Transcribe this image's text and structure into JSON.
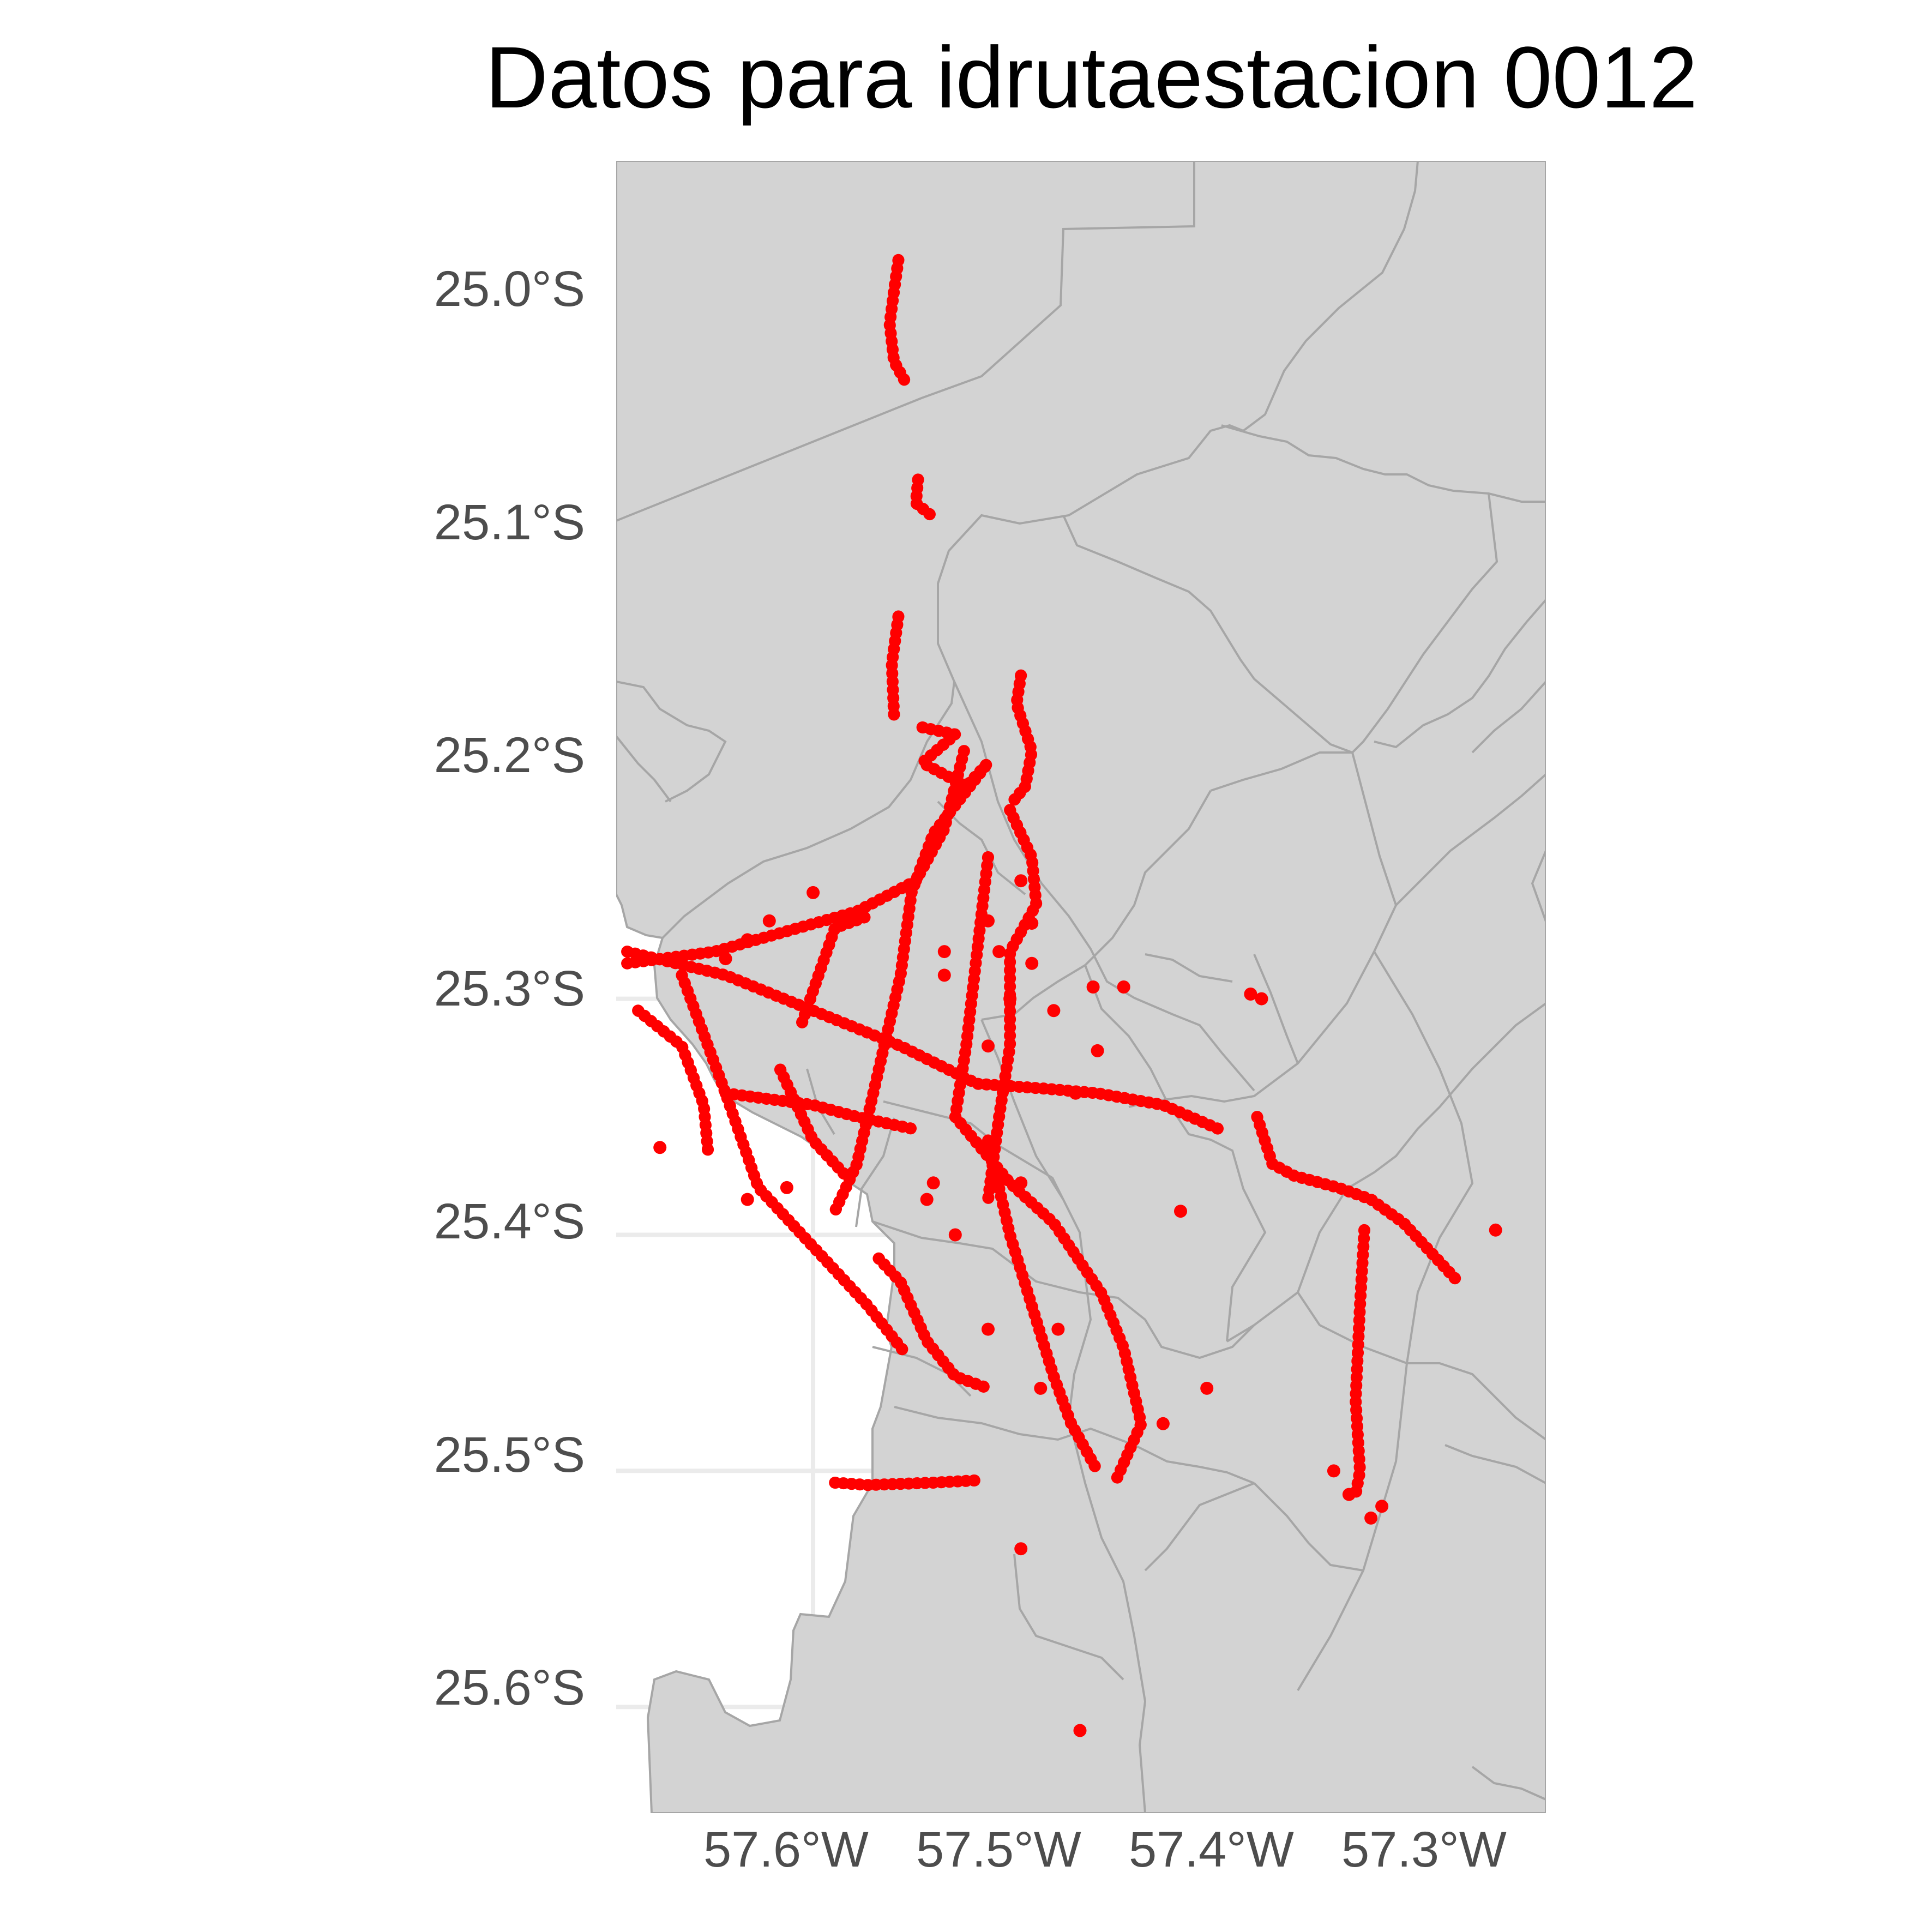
{
  "title": "Datos para idrutaestacion 0012",
  "colors": {
    "land": "#d3d3d3",
    "border": "#a6a6a6",
    "grid": "#ebebeb",
    "points": "#ff0000",
    "axis_text": "#4d4d4d"
  },
  "axes": {
    "y_ticks": [
      "25.0°S",
      "25.1°S",
      "25.2°S",
      "25.3°S",
      "25.4°S",
      "25.5°S",
      "25.6°S"
    ],
    "x_ticks": [
      "57.6°W",
      "57.5°W",
      "57.4°W",
      "57.3°W"
    ],
    "x_range": [
      -57.69,
      -57.265
    ],
    "y_range": [
      -25.645,
      -24.945
    ]
  },
  "chart_data": {
    "type": "scatter",
    "title": "Datos para idrutaestacion 0012",
    "xlabel": "",
    "ylabel": "",
    "xlim": [
      -57.69,
      -57.265
    ],
    "ylim": [
      -25.645,
      -24.945
    ],
    "grid": true,
    "series": [
      {
        "color": "#ff0000",
        "tracks": [
          [
            [
              -57.561,
              -24.987
            ],
            [
              -57.563,
              -25.0
            ],
            [
              -57.565,
              -25.014
            ],
            [
              -57.563,
              -25.03
            ],
            [
              -57.557,
              -25.04
            ]
          ],
          [
            [
              -57.552,
              -25.08
            ],
            [
              -57.553,
              -25.09
            ],
            [
              -57.545,
              -25.096
            ]
          ],
          [
            [
              -57.561,
              -25.138
            ],
            [
              -57.564,
              -25.158
            ],
            [
              -57.563,
              -25.18
            ]
          ],
          [
            [
              -57.505,
              -25.163
            ],
            [
              -57.507,
              -25.175
            ],
            [
              -57.5,
              -25.195
            ],
            [
              -57.503,
              -25.21
            ],
            [
              -57.51,
              -25.218
            ]
          ],
          [
            [
              -57.531,
              -25.195
            ],
            [
              -57.54,
              -25.228
            ],
            [
              -57.553,
              -25.25
            ],
            [
              -57.58,
              -25.263
            ],
            [
              -57.645,
              -25.28
            ],
            [
              -57.685,
              -25.285
            ]
          ],
          [
            [
              -57.55,
              -25.185
            ],
            [
              -57.535,
              -25.188
            ],
            [
              -57.55,
              -25.2
            ],
            [
              -57.53,
              -25.21
            ],
            [
              -57.52,
              -25.2
            ],
            [
              -57.545,
              -25.23
            ],
            [
              -57.555,
              -25.255
            ],
            [
              -57.56,
              -25.29
            ],
            [
              -57.57,
              -25.33
            ],
            [
              -57.58,
              -25.37
            ],
            [
              -57.59,
              -25.39
            ]
          ],
          [
            [
              -57.51,
              -25.22
            ],
            [
              -57.5,
              -25.24
            ],
            [
              -57.498,
              -25.26
            ],
            [
              -57.51,
              -25.28
            ],
            [
              -57.51,
              -25.32
            ],
            [
              -57.515,
              -25.35
            ],
            [
              -57.52,
              -25.385
            ]
          ],
          [
            [
              -57.52,
              -25.24
            ],
            [
              -57.525,
              -25.28
            ],
            [
              -57.53,
              -25.32
            ],
            [
              -57.535,
              -25.35
            ],
            [
              -57.51,
              -25.378
            ],
            [
              -57.49,
              -25.395
            ],
            [
              -57.468,
              -25.425
            ],
            [
              -57.458,
              -25.448
            ],
            [
              -57.45,
              -25.48
            ],
            [
              -57.462,
              -25.505
            ]
          ],
          [
            [
              -57.685,
              -25.28
            ],
            [
              -57.64,
              -25.29
            ],
            [
              -57.6,
              -25.305
            ],
            [
              -57.56,
              -25.32
            ],
            [
              -57.525,
              -25.336
            ],
            [
              -57.495,
              -25.338
            ],
            [
              -57.47,
              -25.34
            ],
            [
              -57.44,
              -25.345
            ],
            [
              -57.415,
              -25.355
            ]
          ],
          [
            [
              -57.66,
              -25.29
            ],
            [
              -57.64,
              -25.34
            ],
            [
              -57.625,
              -25.38
            ],
            [
              -57.61,
              -25.395
            ],
            [
              -57.595,
              -25.41
            ],
            [
              -57.575,
              -25.43
            ],
            [
              -57.558,
              -25.45
            ]
          ],
          [
            [
              -57.52,
              -25.36
            ],
            [
              -57.51,
              -25.4
            ],
            [
              -57.5,
              -25.43
            ],
            [
              -57.49,
              -25.46
            ],
            [
              -57.482,
              -25.48
            ],
            [
              -57.47,
              -25.5
            ]
          ],
          [
            [
              -57.64,
              -25.34
            ],
            [
              -57.6,
              -25.345
            ],
            [
              -57.58,
              -25.35
            ],
            [
              -57.555,
              -25.355
            ]
          ],
          [
            [
              -57.68,
              -25.305
            ],
            [
              -57.66,
              -25.32
            ],
            [
              -57.65,
              -25.345
            ],
            [
              -57.648,
              -25.365
            ]
          ],
          [
            [
              -57.605,
              -25.31
            ],
            [
              -57.59,
              -25.27
            ],
            [
              -57.575,
              -25.265
            ]
          ],
          [
            [
              -57.615,
              -25.33
            ],
            [
              -57.6,
              -25.36
            ],
            [
              -57.585,
              -25.375
            ]
          ],
          [
            [
              -57.397,
              -25.35
            ],
            [
              -57.39,
              -25.37
            ],
            [
              -57.38,
              -25.375
            ],
            [
              -57.36,
              -25.38
            ],
            [
              -57.345,
              -25.385
            ],
            [
              -57.33,
              -25.395
            ],
            [
              -57.315,
              -25.41
            ],
            [
              -57.305,
              -25.42
            ]
          ],
          [
            [
              -57.348,
              -25.398
            ],
            [
              -57.35,
              -25.43
            ],
            [
              -57.352,
              -25.47
            ],
            [
              -57.35,
              -25.5
            ],
            [
              -57.352,
              -25.51
            ]
          ],
          [
            [
              -57.57,
              -25.41
            ],
            [
              -57.56,
              -25.42
            ],
            [
              -57.548,
              -25.445
            ],
            [
              -57.535,
              -25.46
            ],
            [
              -57.52,
              -25.465
            ]
          ],
          [
            [
              -57.59,
              -25.505
            ],
            [
              -57.575,
              -25.506
            ],
            [
              -57.545,
              -25.505
            ],
            [
              -57.525,
              -25.504
            ]
          ]
        ],
        "points": [
          [
            -57.472,
            -25.295
          ],
          [
            -57.458,
            -25.295
          ],
          [
            -57.4,
            -25.298
          ],
          [
            -57.395,
            -25.3
          ],
          [
            -57.49,
            -25.305
          ],
          [
            -57.48,
            -25.34
          ],
          [
            -57.432,
            -25.39
          ],
          [
            -57.505,
            -25.378
          ],
          [
            -57.488,
            -25.44
          ],
          [
            -57.496,
            -25.465
          ],
          [
            -57.548,
            -25.385
          ],
          [
            -57.545,
            -25.378
          ],
          [
            -57.535,
            -25.4
          ],
          [
            -57.52,
            -25.44
          ],
          [
            -57.505,
            -25.533
          ],
          [
            -57.478,
            -25.61
          ],
          [
            -57.288,
            -25.398
          ],
          [
            -57.44,
            -25.48
          ],
          [
            -57.42,
            -25.465
          ],
          [
            -57.345,
            -25.52
          ],
          [
            -57.34,
            -25.515
          ],
          [
            -57.355,
            -25.51
          ],
          [
            -57.362,
            -25.5
          ],
          [
            -57.6,
            -25.255
          ],
          [
            -57.62,
            -25.267
          ],
          [
            -57.63,
            -25.275
          ],
          [
            -57.64,
            -25.283
          ],
          [
            -57.612,
            -25.38
          ],
          [
            -57.63,
            -25.385
          ],
          [
            -57.67,
            -25.363
          ],
          [
            -57.52,
            -25.267
          ],
          [
            -57.51,
            -25.3
          ],
          [
            -57.505,
            -25.25
          ],
          [
            -57.5,
            -25.268
          ],
          [
            -57.515,
            -25.28
          ],
          [
            -57.5,
            -25.285
          ],
          [
            -57.47,
            -25.322
          ],
          [
            -57.52,
            -25.32
          ],
          [
            -57.54,
            -25.28
          ],
          [
            -57.54,
            -25.29
          ]
        ]
      }
    ]
  }
}
